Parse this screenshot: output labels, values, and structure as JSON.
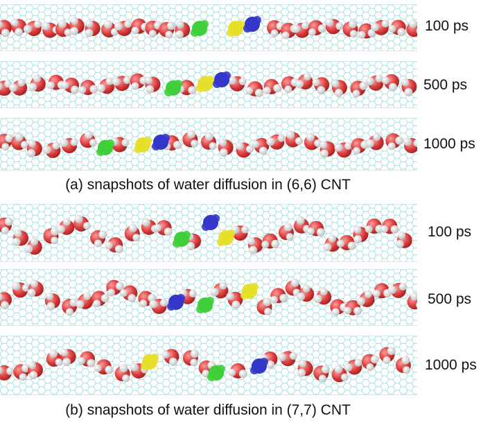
{
  "panels": [
    {
      "caption": "(a) snapshots of water diffusion in (6,6) CNT",
      "snapshots": [
        {
          "time": "100 ps"
        },
        {
          "time": "500 ps"
        },
        {
          "time": "1000 ps"
        }
      ]
    },
    {
      "caption": "(b) snapshots of water diffusion in (7,7) CNT",
      "snapshots": [
        {
          "time": "100 ps"
        },
        {
          "time": "500 ps"
        },
        {
          "time": "1000 ps"
        }
      ]
    }
  ],
  "colors": {
    "lattice": "#7fd3d6",
    "oxygen": "#d93b3b",
    "hydrogen": "#f4f4f4",
    "tagged_green": "#3fcf3a",
    "tagged_yellow": "#e6e02a",
    "tagged_blue": "#3336c9"
  }
}
